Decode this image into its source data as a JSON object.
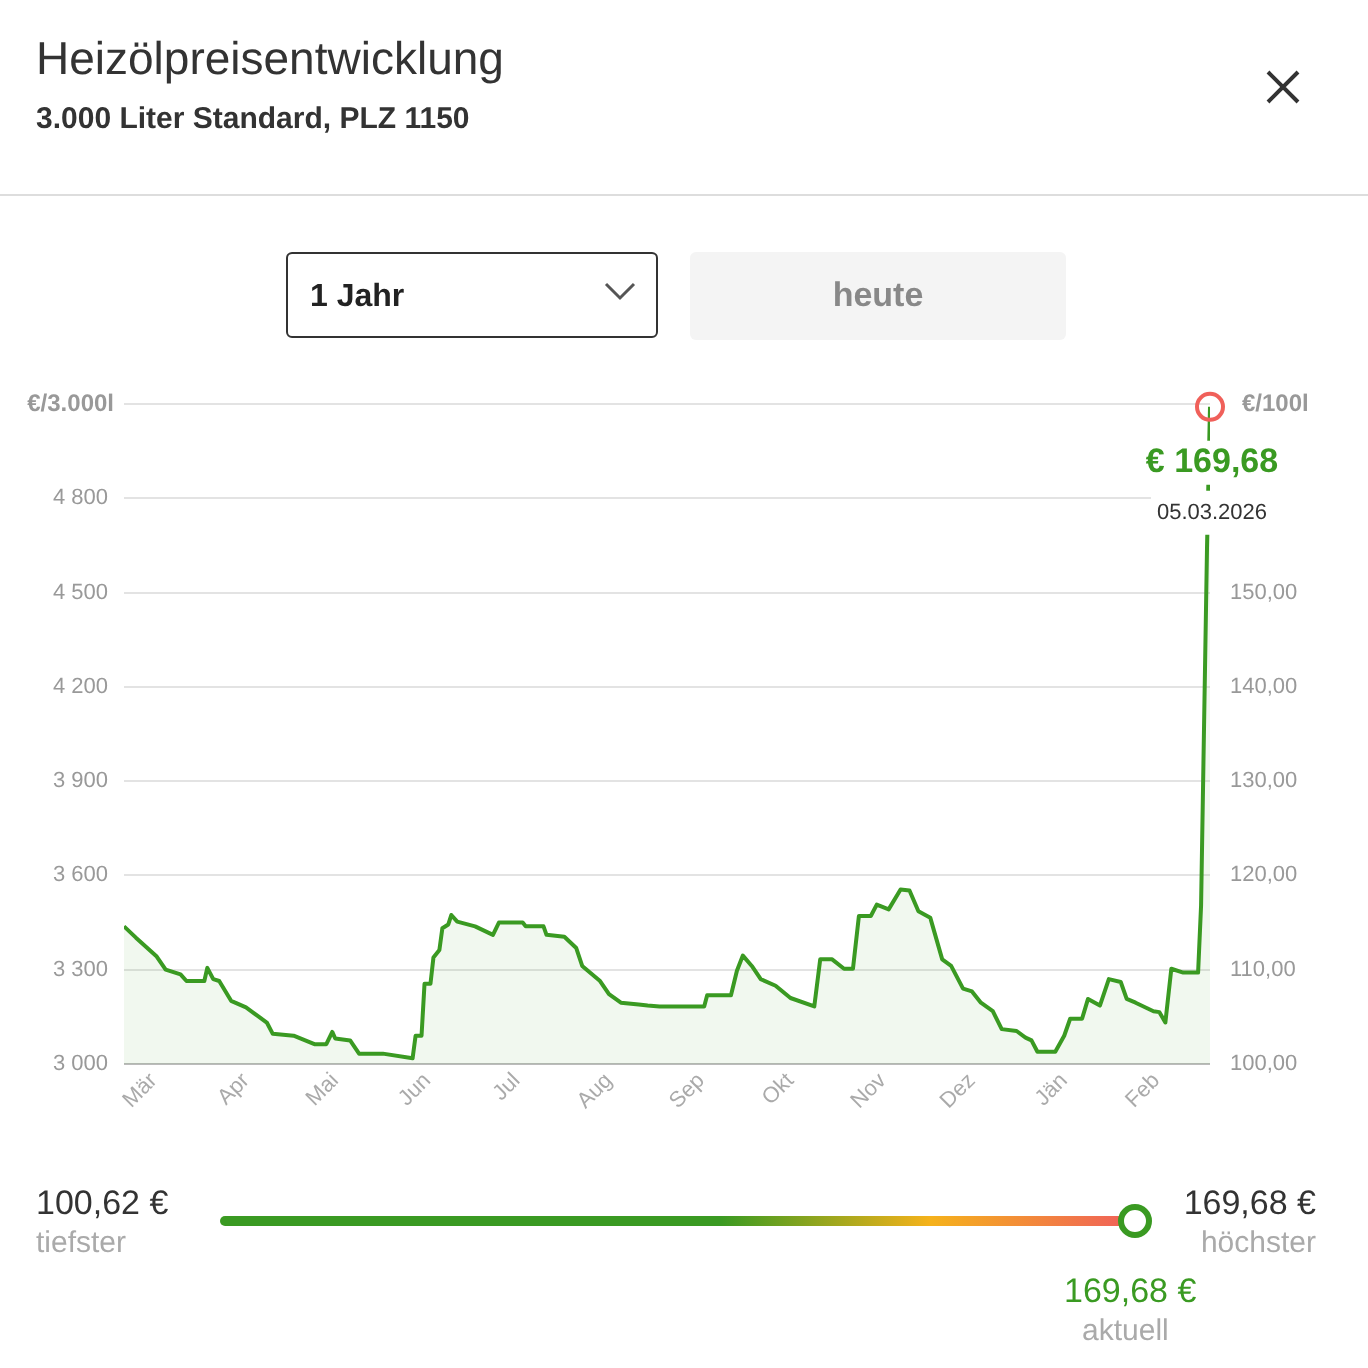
{
  "chart_data": {
    "type": "area",
    "title": "Heizölpreisentwicklung",
    "subtitle": "3.000 Liter Standard, PLZ 1150",
    "ylabel": "€/3.000l",
    "y2label": "€/100l",
    "x": [
      "2025-03-05",
      "2025-03-09",
      "2025-03-16",
      "2025-03-19",
      "2025-03-24",
      "2025-03-26",
      "2025-04-01",
      "2025-04-02",
      "2025-04-04",
      "2025-04-06",
      "2025-04-10",
      "2025-04-15",
      "2025-04-22",
      "2025-04-24",
      "2025-05-01",
      "2025-05-08",
      "2025-05-12",
      "2025-05-14",
      "2025-05-15",
      "2025-05-20",
      "2025-05-23",
      "2025-05-31",
      "2025-06-10",
      "2025-06-11",
      "2025-06-13",
      "2025-06-14",
      "2025-06-16",
      "2025-06-17",
      "2025-06-19",
      "2025-06-20",
      "2025-06-22",
      "2025-06-23",
      "2025-06-25",
      "2025-07-01",
      "2025-07-07",
      "2025-07-09",
      "2025-07-17",
      "2025-07-18",
      "2025-07-24",
      "2025-07-25",
      "2025-07-31",
      "2025-08-04",
      "2025-08-06",
      "2025-08-12",
      "2025-08-15",
      "2025-08-19",
      "2025-08-25",
      "2025-08-28",
      "2025-09-01",
      "2025-09-16",
      "2025-09-17",
      "2025-09-25",
      "2025-09-27",
      "2025-09-29",
      "2025-10-02",
      "2025-10-05",
      "2025-10-10",
      "2025-10-15",
      "2025-10-23",
      "2025-10-25",
      "2025-10-29",
      "2025-11-02",
      "2025-11-05",
      "2025-11-07",
      "2025-11-11",
      "2025-11-13",
      "2025-11-17",
      "2025-11-21",
      "2025-11-24",
      "2025-11-27",
      "2025-12-01",
      "2025-12-05",
      "2025-12-08",
      "2025-12-12",
      "2025-12-15",
      "2025-12-18",
      "2025-12-22",
      "2025-12-25",
      "2025-12-30",
      "2026-01-02",
      "2026-01-04",
      "2026-01-06",
      "2026-01-12",
      "2026-01-15",
      "2026-01-17",
      "2026-01-21",
      "2026-01-23",
      "2026-01-27",
      "2026-01-30",
      "2026-02-03",
      "2026-02-05",
      "2026-02-08",
      "2026-02-14",
      "2026-02-16",
      "2026-02-18",
      "2026-02-20",
      "2026-02-24",
      "2026-03-01",
      "2026-03-02",
      "2026-03-04",
      "2026-03-05"
    ],
    "series": [
      {
        "color": "#3a9a22",
        "axis": "y2",
        "values": [
          114.6,
          113.4,
          111.4,
          110.0,
          109.5,
          108.8,
          108.8,
          110.2,
          109.0,
          108.8,
          106.7,
          106.0,
          104.4,
          103.2,
          103.0,
          102.1,
          102.1,
          103.4,
          102.7,
          102.5,
          101.1,
          101.1,
          100.6,
          103.0,
          103.0,
          108.5,
          108.5,
          111.3,
          112.1,
          114.4,
          114.8,
          115.8,
          115.1,
          114.6,
          113.7,
          115.0,
          115.0,
          114.6,
          114.6,
          113.7,
          113.5,
          112.3,
          110.4,
          108.8,
          107.4,
          106.5,
          106.3,
          106.2,
          106.1,
          106.1,
          107.3,
          107.3,
          109.9,
          111.5,
          110.4,
          109.0,
          108.3,
          107.0,
          106.1,
          111.1,
          111.1,
          110.1,
          110.1,
          115.7,
          115.7,
          116.9,
          116.4,
          118.5,
          118.4,
          116.2,
          115.5,
          111.1,
          110.4,
          108.0,
          107.7,
          106.5,
          105.6,
          103.7,
          103.5,
          102.8,
          102.5,
          101.3,
          101.3,
          103.0,
          104.8,
          104.8,
          106.9,
          106.2,
          109.0,
          108.7,
          106.9,
          106.5,
          105.6,
          105.5,
          104.4,
          110.1,
          109.7,
          109.7,
          116.8,
          154.8,
          169.7
        ]
      }
    ],
    "xlim": [
      "2025-03-05",
      "2026-03-05"
    ],
    "xticks": [
      {
        "value": "2025-03-15",
        "label": "Mär"
      },
      {
        "value": "2025-04-15",
        "label": "Apr"
      },
      {
        "value": "2025-05-15",
        "label": "Mai"
      },
      {
        "value": "2025-06-15",
        "label": "Jun"
      },
      {
        "value": "2025-07-15",
        "label": "Jul"
      },
      {
        "value": "2025-08-15",
        "label": "Aug"
      },
      {
        "value": "2025-09-15",
        "label": "Sep"
      },
      {
        "value": "2025-10-15",
        "label": "Okt"
      },
      {
        "value": "2025-11-15",
        "label": "Nov"
      },
      {
        "value": "2025-12-15",
        "label": "Dez"
      },
      {
        "value": "2026-01-15",
        "label": "Jän"
      },
      {
        "value": "2026-02-15",
        "label": "Feb"
      }
    ],
    "ylim": [
      3000,
      5100
    ],
    "yticks": [
      {
        "value": 3000,
        "label": "3 000"
      },
      {
        "value": 3300,
        "label": "3 300"
      },
      {
        "value": 3600,
        "label": "3 600"
      },
      {
        "value": 3900,
        "label": "3 900"
      },
      {
        "value": 4200,
        "label": "4 200"
      },
      {
        "value": 4500,
        "label": "4 500"
      },
      {
        "value": 4800,
        "label": "4 800"
      },
      {
        "value": 5100,
        "label": null
      }
    ],
    "y2lim": [
      100,
      170
    ],
    "y2ticks": [
      {
        "value": 100,
        "label": "100,00"
      },
      {
        "value": 110,
        "label": "110,00"
      },
      {
        "value": 120,
        "label": "120,00"
      },
      {
        "value": 130,
        "label": "130,00"
      },
      {
        "value": 140,
        "label": "140,00"
      },
      {
        "value": 150,
        "label": "150,00"
      },
      {
        "value": 160,
        "label": null
      },
      {
        "value": 170,
        "label": null
      }
    ],
    "grid": "y",
    "annotations": [
      "1 Jahr",
      "heute",
      "€ 169,68",
      "05.03.2026",
      "100,62 €",
      "tiefster",
      "169,68 €",
      "höchster",
      "169,68 €",
      "aktuell"
    ]
  }
}
